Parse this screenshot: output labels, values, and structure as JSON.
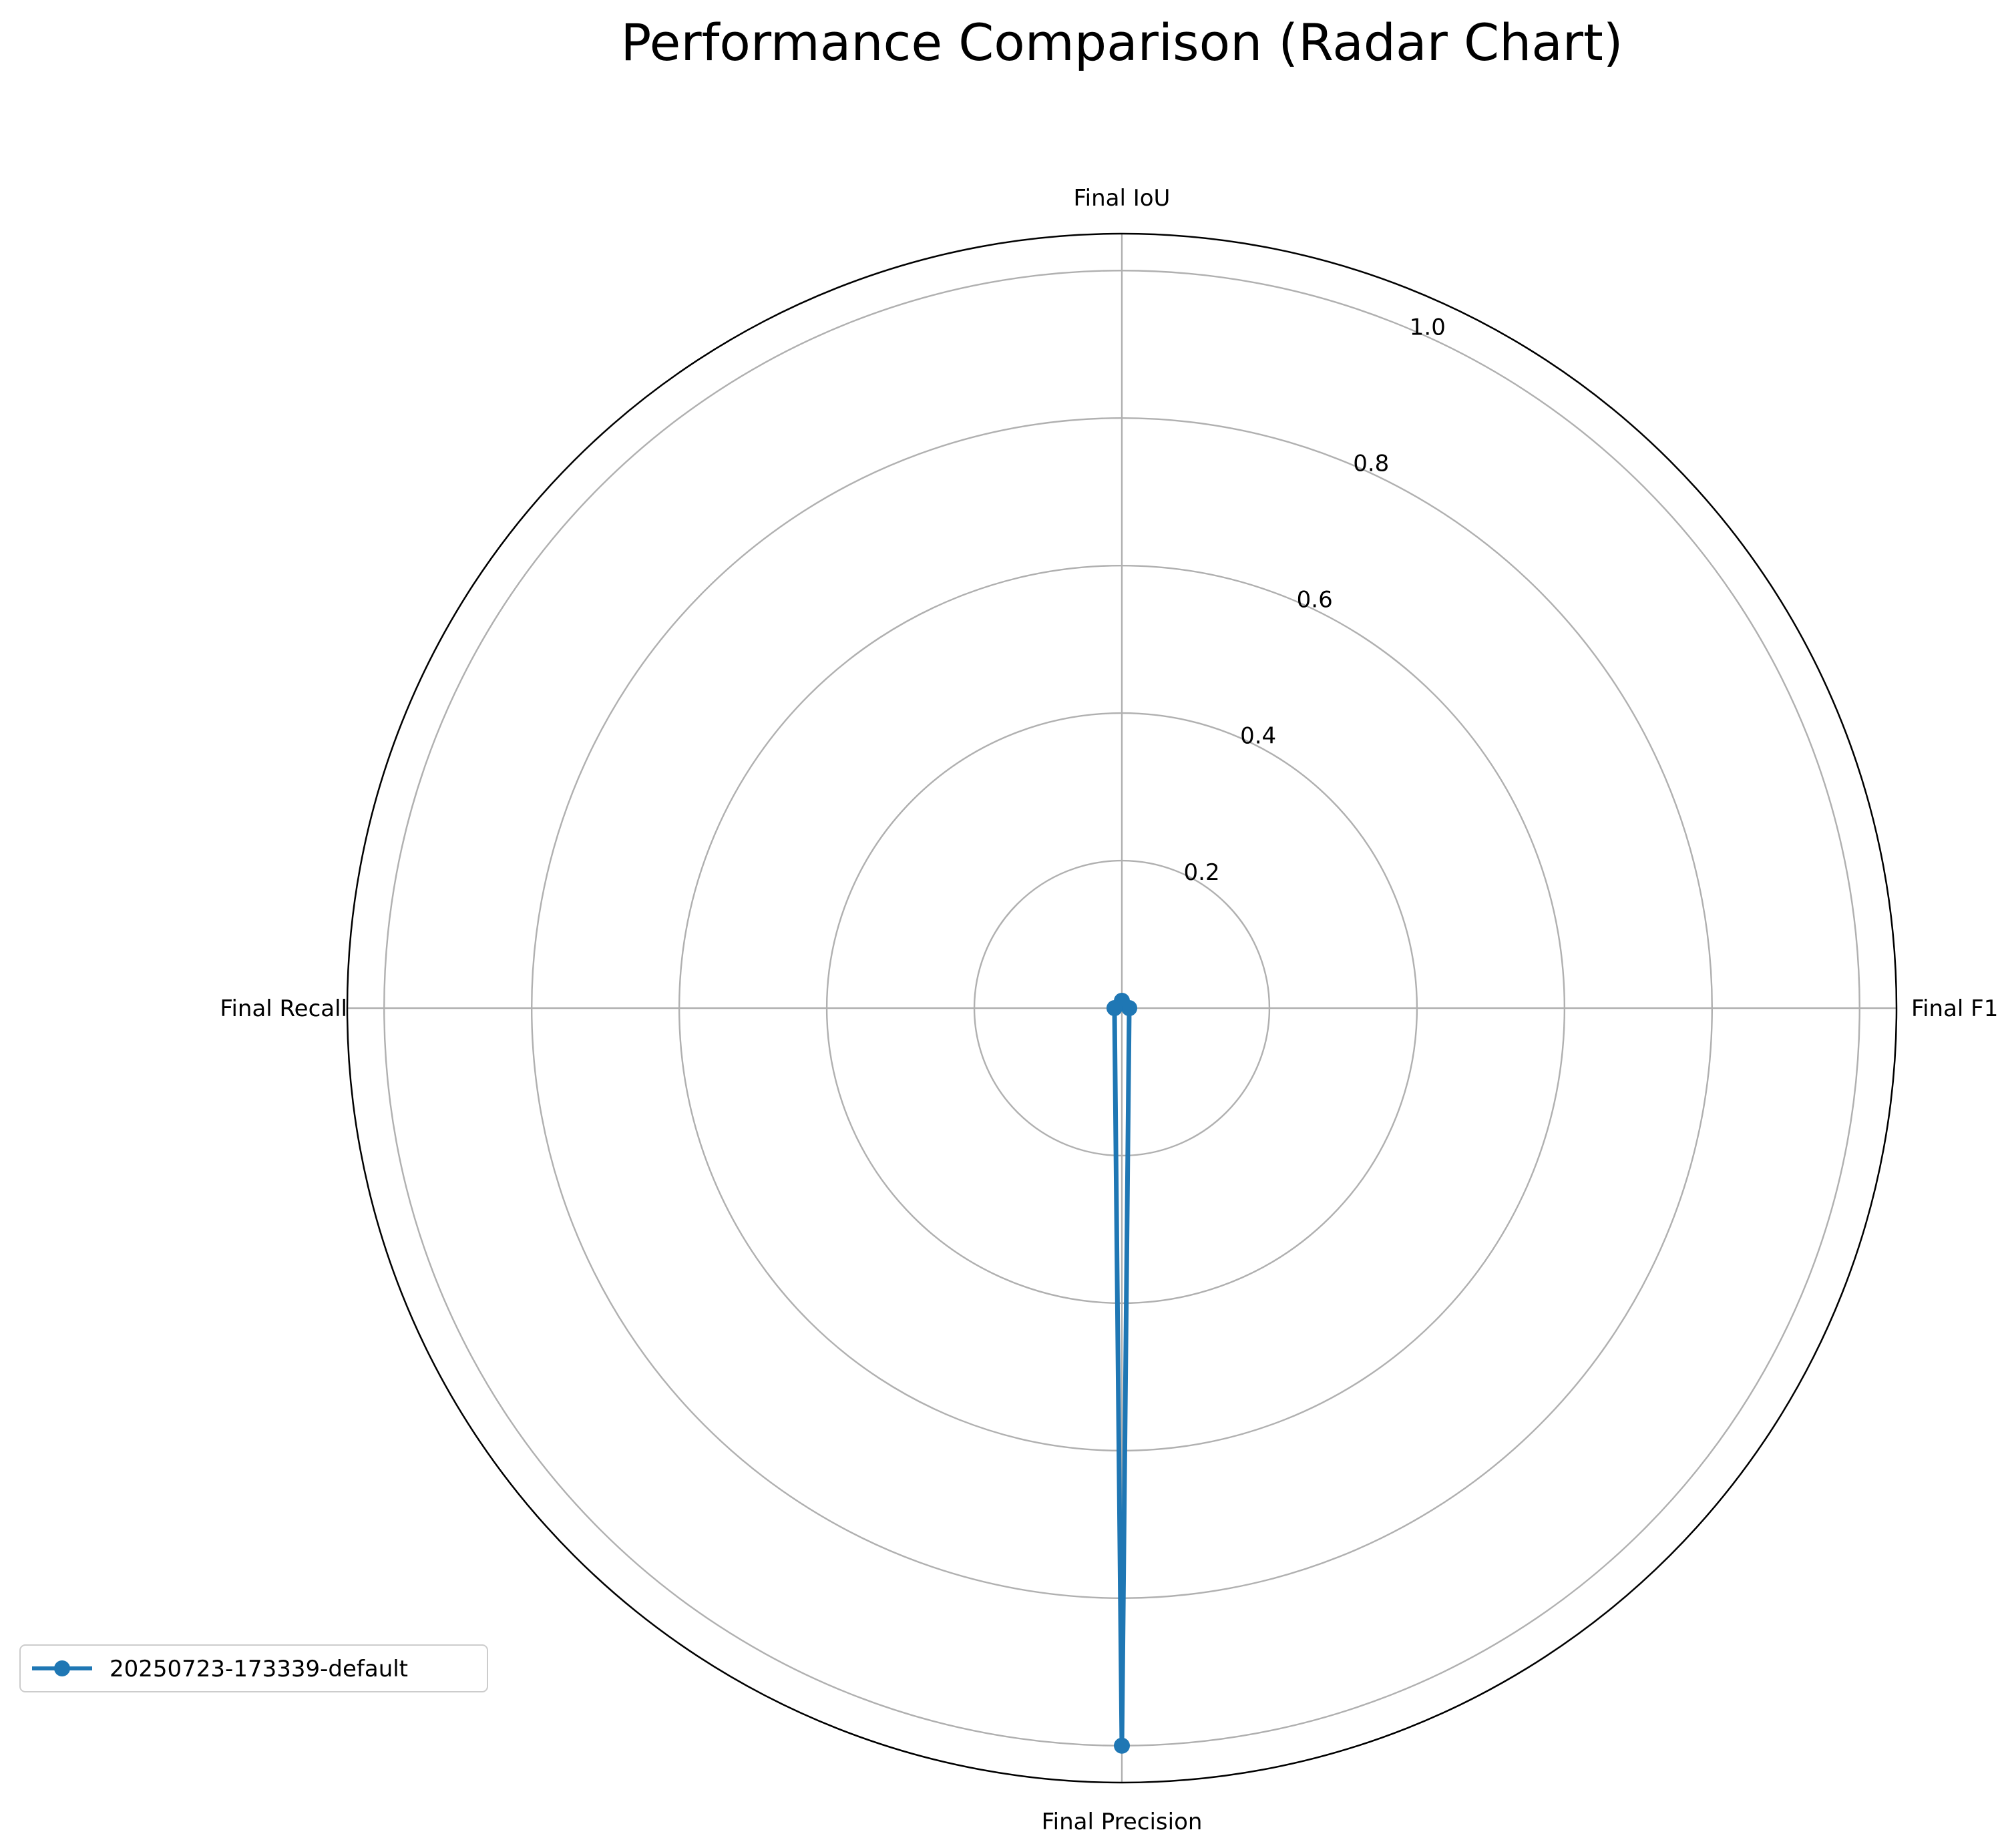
{
  "chart_data": {
    "type": "radar",
    "title": "Performance Comparison (Radar Chart)",
    "categories": [
      "Final IoU",
      "Final F1",
      "Final Precision",
      "Final Recall"
    ],
    "rlim": [
      0,
      1.05
    ],
    "rticks": [
      0.2,
      0.4,
      0.6,
      0.8,
      1.0
    ],
    "rtick_labels": [
      "0.2",
      "0.4",
      "0.6",
      "0.8",
      "1.0"
    ],
    "series": [
      {
        "name": "20250723-173339-default",
        "values": [
          0.01,
          0.01,
          1.0,
          0.01
        ],
        "color": "#1f77b4"
      }
    ],
    "grid": true,
    "legend_position": "lower-left"
  }
}
